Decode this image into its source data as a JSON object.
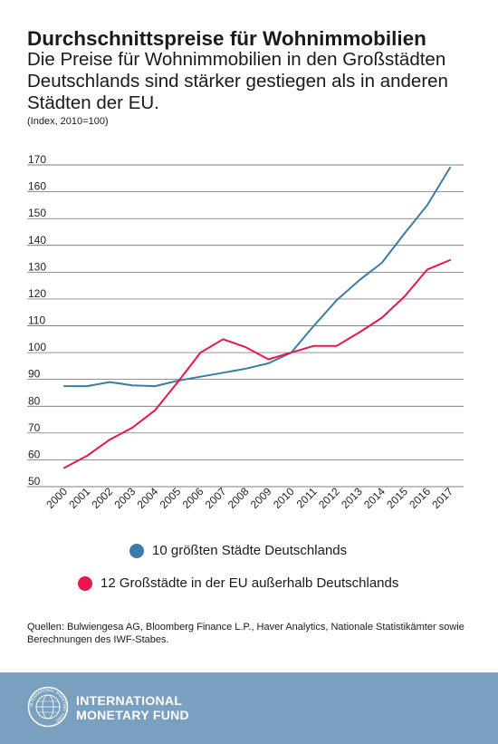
{
  "header": {
    "title": "Durchschnittspreise für Wohnimmobilien",
    "subtitle": "Die Preise für Wohnimmobilien in den Großstädten Deutschlands sind stärker gestiegen als in anderen Städten der EU.",
    "note": "(Index, 2010=100)"
  },
  "chart_data": {
    "type": "line",
    "title": "Durchschnittspreise für Wohnimmobilien",
    "x": [
      "2000",
      "2001",
      "2002",
      "2003",
      "2004",
      "2005",
      "2006",
      "2007",
      "2008",
      "2009",
      "2010",
      "2011",
      "2012",
      "2013",
      "2014",
      "2015",
      "2016",
      "2017"
    ],
    "ylim": [
      50,
      170
    ],
    "yticks": [
      50,
      60,
      70,
      80,
      90,
      100,
      110,
      120,
      130,
      140,
      150,
      160,
      170
    ],
    "grid": true,
    "legend_position": "bottom",
    "series": [
      {
        "name": "10 größten Städte Deutschlands",
        "color": "#3a7ca5",
        "values": [
          87.5,
          87.5,
          89,
          87.8,
          87.5,
          89.5,
          91,
          92.5,
          94,
          96,
          100,
          110,
          119.5,
          127,
          133.5,
          144.5,
          155,
          169
        ]
      },
      {
        "name": "12 Großstädte in der EU außerhalb Deutschlands",
        "color": "#e8174e",
        "values": [
          57,
          61.5,
          67.5,
          72,
          78.5,
          89,
          100,
          105,
          102,
          97.5,
          100,
          102.5,
          102.5,
          107.5,
          113,
          121,
          131,
          134.5
        ]
      }
    ]
  },
  "sources": "Quellen: Bulwiengesa AG, Bloomberg Finance L.P., Haver Analytics, Nationale Statistikämter sowie Berechnungen des IWF-Stabes.",
  "footer": {
    "logo_line1": "INTERNATIONAL",
    "logo_line2": "MONETARY FUND",
    "seal_text": "INTERNATIONAL MONETARY FUND",
    "background": "#79a0bf"
  }
}
